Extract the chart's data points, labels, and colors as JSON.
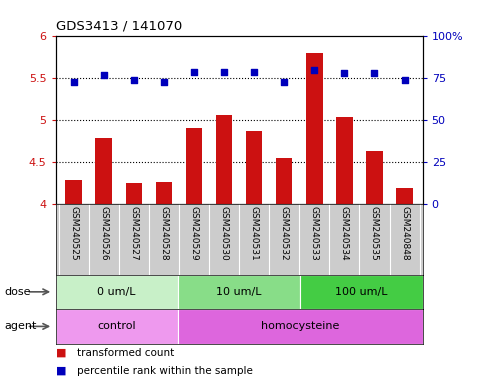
{
  "title": "GDS3413 / 141070",
  "samples": [
    "GSM240525",
    "GSM240526",
    "GSM240527",
    "GSM240528",
    "GSM240529",
    "GSM240530",
    "GSM240531",
    "GSM240532",
    "GSM240533",
    "GSM240534",
    "GSM240535",
    "GSM240848"
  ],
  "red_values": [
    4.28,
    4.78,
    4.24,
    4.26,
    4.9,
    5.06,
    4.87,
    4.55,
    5.8,
    5.04,
    4.63,
    4.18
  ],
  "blue_values": [
    73,
    77,
    74,
    73,
    79,
    79,
    79,
    73,
    80,
    78,
    78,
    74
  ],
  "ylim_left": [
    4.0,
    6.0
  ],
  "ylim_right": [
    0,
    100
  ],
  "yticks_left": [
    4.0,
    4.5,
    5.0,
    5.5,
    6.0
  ],
  "yticks_right": [
    0,
    25,
    50,
    75,
    100
  ],
  "ytick_labels_left": [
    "4",
    "4.5",
    "5",
    "5.5",
    "6"
  ],
  "ytick_labels_right": [
    "0",
    "25",
    "50",
    "75",
    "100%"
  ],
  "hlines": [
    4.5,
    5.0,
    5.5
  ],
  "dose_groups": [
    {
      "label": "0 um/L",
      "start": 0,
      "end": 4,
      "color": "#c8f0c8"
    },
    {
      "label": "10 um/L",
      "start": 4,
      "end": 8,
      "color": "#88dd88"
    },
    {
      "label": "100 um/L",
      "start": 8,
      "end": 12,
      "color": "#44cc44"
    }
  ],
  "agent_groups": [
    {
      "label": "control",
      "start": 0,
      "end": 4,
      "color": "#ee99ee"
    },
    {
      "label": "homocysteine",
      "start": 4,
      "end": 12,
      "color": "#dd66dd"
    }
  ],
  "bar_color": "#cc1111",
  "dot_color": "#0000bb",
  "label_bg": "#cccccc",
  "label_sep_color": "#ffffff",
  "plot_bg": "#ffffff",
  "legend_items": [
    {
      "color": "#cc1111",
      "label": "transformed count"
    },
    {
      "color": "#0000bb",
      "label": "percentile rank within the sample"
    }
  ]
}
